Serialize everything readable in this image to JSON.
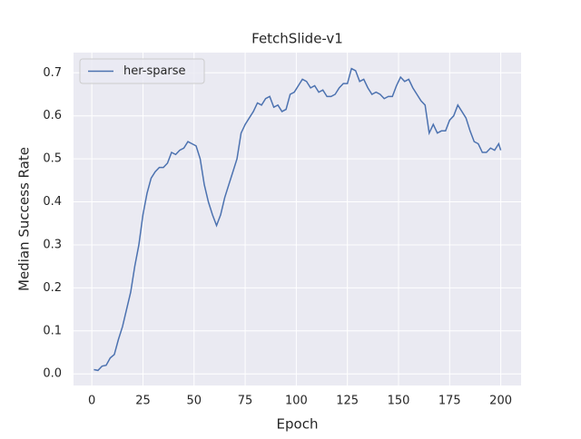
{
  "chart_data": {
    "type": "line",
    "title": "FetchSlide-v1",
    "xlabel": "Epoch",
    "ylabel": "Median Success Rate",
    "x": [
      1,
      3,
      5,
      7,
      9,
      11,
      13,
      15,
      17,
      19,
      21,
      23,
      25,
      27,
      29,
      31,
      33,
      35,
      37,
      39,
      41,
      43,
      45,
      47,
      49,
      51,
      53,
      55,
      57,
      59,
      61,
      63,
      65,
      67,
      69,
      71,
      73,
      75,
      77,
      79,
      81,
      83,
      85,
      87,
      89,
      91,
      93,
      95,
      97,
      99,
      101,
      103,
      105,
      107,
      109,
      111,
      113,
      115,
      117,
      119,
      121,
      123,
      125,
      127,
      129,
      131,
      133,
      135,
      137,
      139,
      141,
      143,
      145,
      147,
      149,
      151,
      153,
      155,
      157,
      159,
      161,
      163,
      165,
      167,
      169,
      171,
      173,
      175,
      177,
      179,
      181,
      183,
      185,
      187,
      189,
      191,
      193,
      195,
      197,
      199,
      200
    ],
    "series": [
      {
        "name": "her-sparse",
        "color": "#4c72b0",
        "values": [
          0.01,
          0.008,
          0.018,
          0.02,
          0.037,
          0.045,
          0.08,
          0.11,
          0.15,
          0.19,
          0.25,
          0.3,
          0.37,
          0.42,
          0.455,
          0.47,
          0.48,
          0.48,
          0.49,
          0.515,
          0.51,
          0.52,
          0.525,
          0.54,
          0.535,
          0.53,
          0.5,
          0.44,
          0.4,
          0.37,
          0.345,
          0.37,
          0.41,
          0.44,
          0.47,
          0.5,
          0.56,
          0.58,
          0.595,
          0.61,
          0.63,
          0.625,
          0.64,
          0.645,
          0.62,
          0.625,
          0.61,
          0.615,
          0.65,
          0.655,
          0.67,
          0.685,
          0.68,
          0.665,
          0.67,
          0.655,
          0.66,
          0.645,
          0.645,
          0.65,
          0.665,
          0.675,
          0.675,
          0.71,
          0.705,
          0.68,
          0.685,
          0.665,
          0.65,
          0.655,
          0.65,
          0.64,
          0.645,
          0.645,
          0.67,
          0.69,
          0.68,
          0.685,
          0.665,
          0.65,
          0.635,
          0.625,
          0.56,
          0.58,
          0.56,
          0.565,
          0.565,
          0.59,
          0.6,
          0.625,
          0.61,
          0.595,
          0.565,
          0.54,
          0.535,
          0.515,
          0.515,
          0.525,
          0.52,
          0.535,
          0.52
        ]
      }
    ],
    "xlim": [
      -8.95,
      209.95
    ],
    "ylim": [
      -0.027,
      0.747
    ],
    "xticks": [
      0,
      25,
      50,
      75,
      100,
      125,
      150,
      175,
      200
    ],
    "yticks": [
      {
        "value": 0,
        "label": "0.0"
      },
      0.1,
      0.2,
      0.3,
      0.4,
      0.5,
      0.6,
      0.7
    ],
    "grid": true,
    "legend": "upper left"
  }
}
